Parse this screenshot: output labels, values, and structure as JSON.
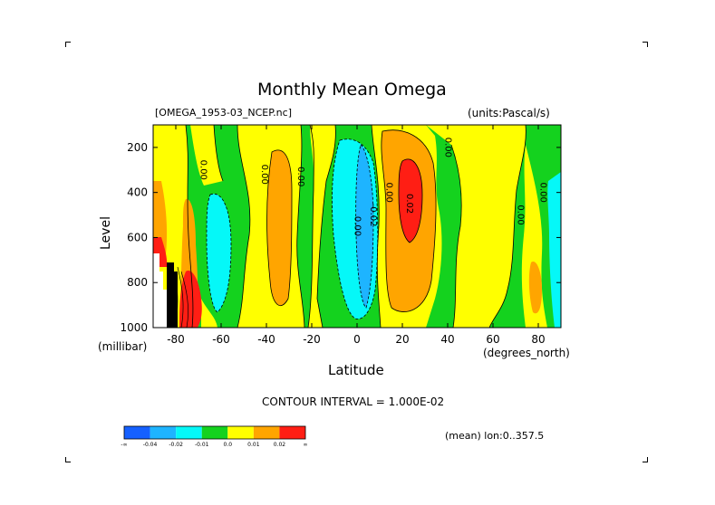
{
  "chart_data": {
    "type": "heatmap",
    "title": "Monthly Mean Omega",
    "dataset": "[OMEGA_1953-03_NCEP.nc]",
    "units": "(units:Pascal/s)",
    "xlabel": "Latitude",
    "xunits": "(degrees_north)",
    "ylabel": "Level",
    "yunits": "(millibar)",
    "xlim": [
      -90,
      90
    ],
    "ylim": [
      1000,
      100
    ],
    "xticks": [
      "-80",
      "-60",
      "-40",
      "-20",
      "0",
      "20",
      "40",
      "60",
      "80"
    ],
    "yticks": [
      "200",
      "400",
      "600",
      "800",
      "1000"
    ],
    "contour_interval": "CONTOUR INTERVAL = 1.000E-02",
    "averaging": "(mean) lon:0..357.5",
    "contour_labels": [
      "0.00",
      "0.00",
      "0.00",
      "0.00",
      "-0.02",
      "0.00",
      "0.02",
      "0.00",
      "0.00",
      "0.00"
    ],
    "colorbar": {
      "labels": [
        "-∞",
        "-0.04",
        "-0.02",
        "-0.01",
        "0.0",
        "0.01",
        "0.02",
        "∞"
      ],
      "colors": [
        "#1560ff",
        "#1eb4ff",
        "#05f8f8",
        "#14d21e",
        "#ffff00",
        "#ffa500",
        "#ff1e14"
      ]
    }
  }
}
